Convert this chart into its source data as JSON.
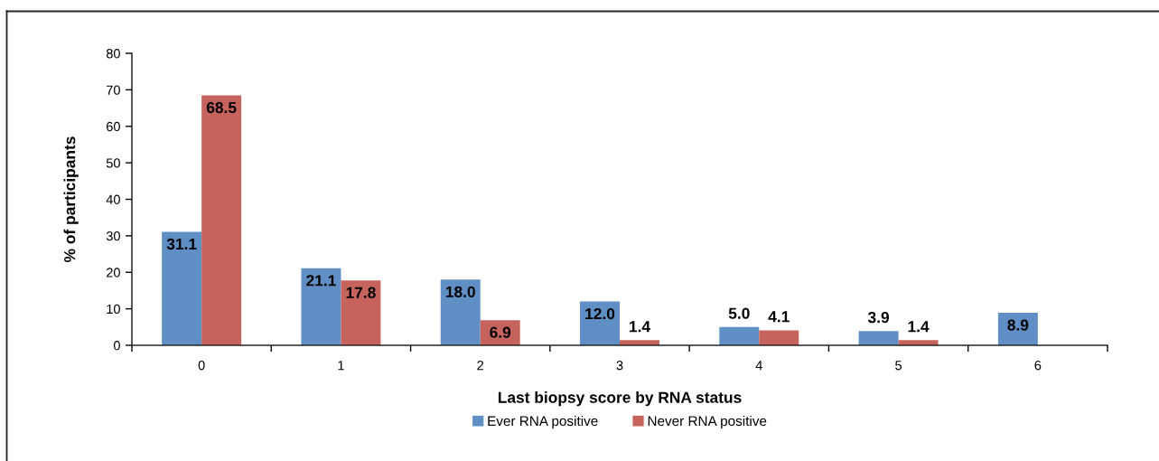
{
  "chart_data": {
    "type": "bar",
    "xlabel": "Last biopsy score by RNA status",
    "ylabel": "% of participants",
    "categories": [
      "0",
      "1",
      "2",
      "3",
      "4",
      "5",
      "6"
    ],
    "series": [
      {
        "name": "Ever RNA positive",
        "color": "#5f8fc4",
        "values": [
          31.1,
          21.1,
          18.0,
          12.0,
          5.0,
          3.9,
          8.9
        ],
        "value_labels": [
          "31.1",
          "21.1",
          "18.0",
          "12.0",
          "5.0",
          "3.9",
          "8.9"
        ]
      },
      {
        "name": "Never RNA positive",
        "color": "#c6635c",
        "values": [
          68.5,
          17.8,
          6.9,
          1.4,
          4.1,
          1.4,
          null
        ],
        "value_labels": [
          "68.5",
          "17.8",
          "6.9",
          "1.4",
          "4.1",
          "1.4",
          null
        ]
      }
    ],
    "ylim": [
      0,
      80
    ],
    "yticks": [
      0,
      10,
      20,
      30,
      40,
      50,
      60,
      70,
      80
    ],
    "legend": "bottom"
  }
}
